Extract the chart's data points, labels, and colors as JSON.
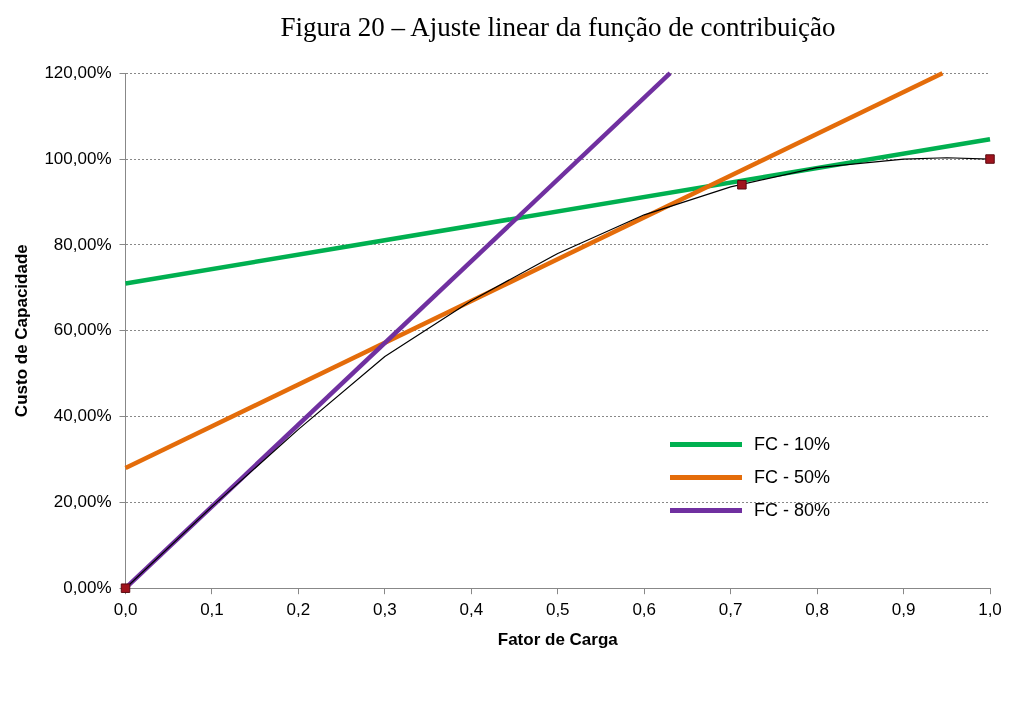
{
  "chart_data": {
    "type": "line",
    "title": "Figura 20 – Ajuste linear da função de contribuição",
    "xlabel": "Fator de Carga",
    "ylabel": "Custo de Capacidade",
    "xlim": [
      0,
      1
    ],
    "ylim": [
      0,
      120
    ],
    "xticks": [
      {
        "value": 0,
        "label": "0,0"
      },
      {
        "value": 0.1,
        "label": "0,1"
      },
      {
        "value": 0.2,
        "label": "0,2"
      },
      {
        "value": 0.3,
        "label": "0,3"
      },
      {
        "value": 0.4,
        "label": "0,4"
      },
      {
        "value": 0.5,
        "label": "0,5"
      },
      {
        "value": 0.6,
        "label": "0,6"
      },
      {
        "value": 0.7,
        "label": "0,7"
      },
      {
        "value": 0.8,
        "label": "0,8"
      },
      {
        "value": 0.9,
        "label": "0,9"
      },
      {
        "value": 1,
        "label": "1,0"
      }
    ],
    "yticks": [
      {
        "value": 0,
        "label": "0,00%"
      },
      {
        "value": 20,
        "label": "20,00%"
      },
      {
        "value": 40,
        "label": "40,00%"
      },
      {
        "value": 60,
        "label": "60,00%"
      },
      {
        "value": 80,
        "label": "80,00%"
      },
      {
        "value": 100,
        "label": "100,00%"
      },
      {
        "value": 120,
        "label": "120,00%"
      }
    ],
    "grid": "y",
    "legend": "bottom right",
    "marker": "none",
    "series": [
      {
        "name": "FC - 10%",
        "color": "#00b050",
        "x": [
          0,
          1
        ],
        "values": [
          71,
          104.6
        ]
      },
      {
        "name": "FC - 50%",
        "color": "#e46c0a",
        "x": [
          0,
          0.945
        ],
        "values": [
          28,
          120
        ]
      },
      {
        "name": "FC - 80%",
        "color": "#7030a0",
        "x": [
          0,
          0.63
        ],
        "values": [
          0,
          120
        ]
      },
      {
        "color": "#000000",
        "x": [
          0,
          0.1,
          0.2,
          0.3,
          0.4,
          0.5,
          0.6,
          0.7,
          0.8,
          0.9,
          0.95,
          1
        ],
        "values": [
          0,
          19,
          37,
          54,
          67,
          78,
          87,
          93.5,
          98,
          100,
          100.3,
          100
        ]
      },
      {
        "type": "scatter",
        "color": "#a0141e",
        "marker": "square",
        "x": [
          0,
          0.713,
          1
        ],
        "values": [
          0,
          94,
          100
        ]
      }
    ]
  }
}
